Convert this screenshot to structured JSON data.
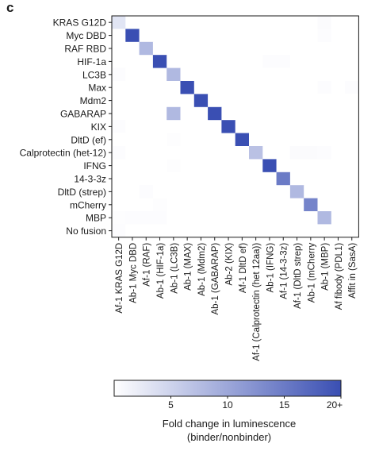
{
  "panel_label": "c",
  "chart_data": {
    "type": "heatmap",
    "rows": [
      "KRAS G12D",
      "Myc DBD",
      "RAF RBD",
      "HIF-1a",
      "LC3B",
      "Max",
      "Mdm2",
      "GABARAP",
      "KIX",
      "DltD (ef)",
      "Calprotectin (het-12)",
      "IFNG",
      "14-3-3z",
      "DltD (strep)",
      "mCherry",
      "MBP",
      "No fusion"
    ],
    "columns": [
      "Af-1 KRAS G12D",
      "Ab-1 Myc DBD",
      "Af-1 (RAF)",
      "Ab-1 (HIF-1a)",
      "Ab-1 (LC3B)",
      "Ab-1 (MAX)",
      "Ab-1 (Mdm2)",
      "Ab-1 (GABARAP)",
      "Ab-2 (KIX)",
      "Af-1 DltD ef)",
      "Af-1 (Calprotectin (het 12aa))",
      "Ab-1 (IFNG)",
      "Af-1 (14-3-3z)",
      "Af-1 (DltD strep)",
      "Ab-1 (mCherry",
      "Ab-1 (MBP)",
      "Af fibody (PDL1)",
      "Affit in (SasA)"
    ],
    "values": [
      [
        3,
        0,
        0,
        0,
        0,
        0,
        0,
        0,
        0,
        0,
        0,
        0,
        0,
        0,
        0,
        0.4,
        0,
        0
      ],
      [
        0,
        20,
        0,
        0,
        0,
        0,
        0,
        0,
        0,
        0,
        0,
        0,
        0,
        0,
        0,
        0.3,
        0,
        0
      ],
      [
        0,
        0,
        8,
        0,
        0,
        0,
        0,
        0,
        0,
        0,
        0,
        0,
        0,
        0,
        0,
        0,
        0,
        0
      ],
      [
        0,
        0,
        0,
        20,
        0,
        0,
        0,
        0,
        0,
        0,
        0,
        0.3,
        0.3,
        0,
        0,
        0,
        0,
        0
      ],
      [
        0.3,
        0,
        0,
        0,
        8,
        0,
        0,
        0,
        0,
        0,
        0,
        0,
        0,
        0,
        0,
        0,
        0,
        0
      ],
      [
        0,
        0,
        0,
        0,
        0,
        20,
        0,
        0,
        0,
        0,
        0,
        0,
        0,
        0,
        0,
        0.3,
        0,
        0.3
      ],
      [
        0,
        0,
        0,
        0,
        0,
        0,
        20,
        0,
        0,
        0,
        0,
        0,
        0,
        0,
        0,
        0,
        0,
        0
      ],
      [
        0,
        0,
        0,
        0,
        8,
        0,
        0,
        20,
        0,
        0,
        0,
        0,
        0,
        0,
        0,
        0,
        0,
        0
      ],
      [
        0.3,
        0,
        0,
        0,
        0,
        0,
        0,
        0,
        20,
        0,
        0,
        0,
        0,
        0,
        0,
        0,
        0,
        0
      ],
      [
        0,
        0,
        0,
        0,
        0.2,
        0,
        0,
        0,
        0,
        20,
        0,
        0,
        0,
        0,
        0,
        0,
        0,
        0
      ],
      [
        0.3,
        0,
        0,
        0,
        0,
        0,
        0,
        0,
        0,
        0,
        7,
        0,
        0,
        0.4,
        0.4,
        0.3,
        0,
        0
      ],
      [
        0,
        0,
        0,
        0,
        0.2,
        0,
        0,
        0,
        0,
        0,
        0,
        20,
        0,
        0,
        0,
        0,
        0,
        0
      ],
      [
        0,
        0,
        0,
        0,
        0,
        0,
        0,
        0,
        0,
        0,
        0,
        0,
        15,
        0,
        0,
        0,
        0,
        0
      ],
      [
        0,
        0,
        0.3,
        0,
        0,
        0,
        0,
        0,
        0,
        0,
        0,
        0,
        0,
        8,
        0,
        0,
        0,
        0
      ],
      [
        0,
        0,
        0,
        0.2,
        0,
        0,
        0,
        0,
        0,
        0,
        0,
        0,
        0,
        0,
        14,
        0,
        0,
        0
      ],
      [
        0.2,
        0.3,
        0.3,
        0.3,
        0,
        0,
        0,
        0,
        0,
        0,
        0,
        0,
        0,
        0,
        0,
        8,
        0,
        0
      ],
      [
        0.3,
        0,
        0,
        0,
        0,
        0,
        0,
        0,
        0,
        0,
        0,
        0,
        0,
        0,
        0,
        0,
        0,
        0
      ]
    ],
    "colorbar": {
      "min": 0,
      "max": 20,
      "ticks": [
        5,
        10,
        15,
        20
      ],
      "tick_labels": [
        "5",
        "10",
        "15",
        "20+"
      ],
      "color_low": "#ffffff",
      "color_high": "#3a4fb3"
    },
    "colorbar_label_line1": "Fold change in luminescence",
    "colorbar_label_line2": "(binder/nonbinder)"
  }
}
